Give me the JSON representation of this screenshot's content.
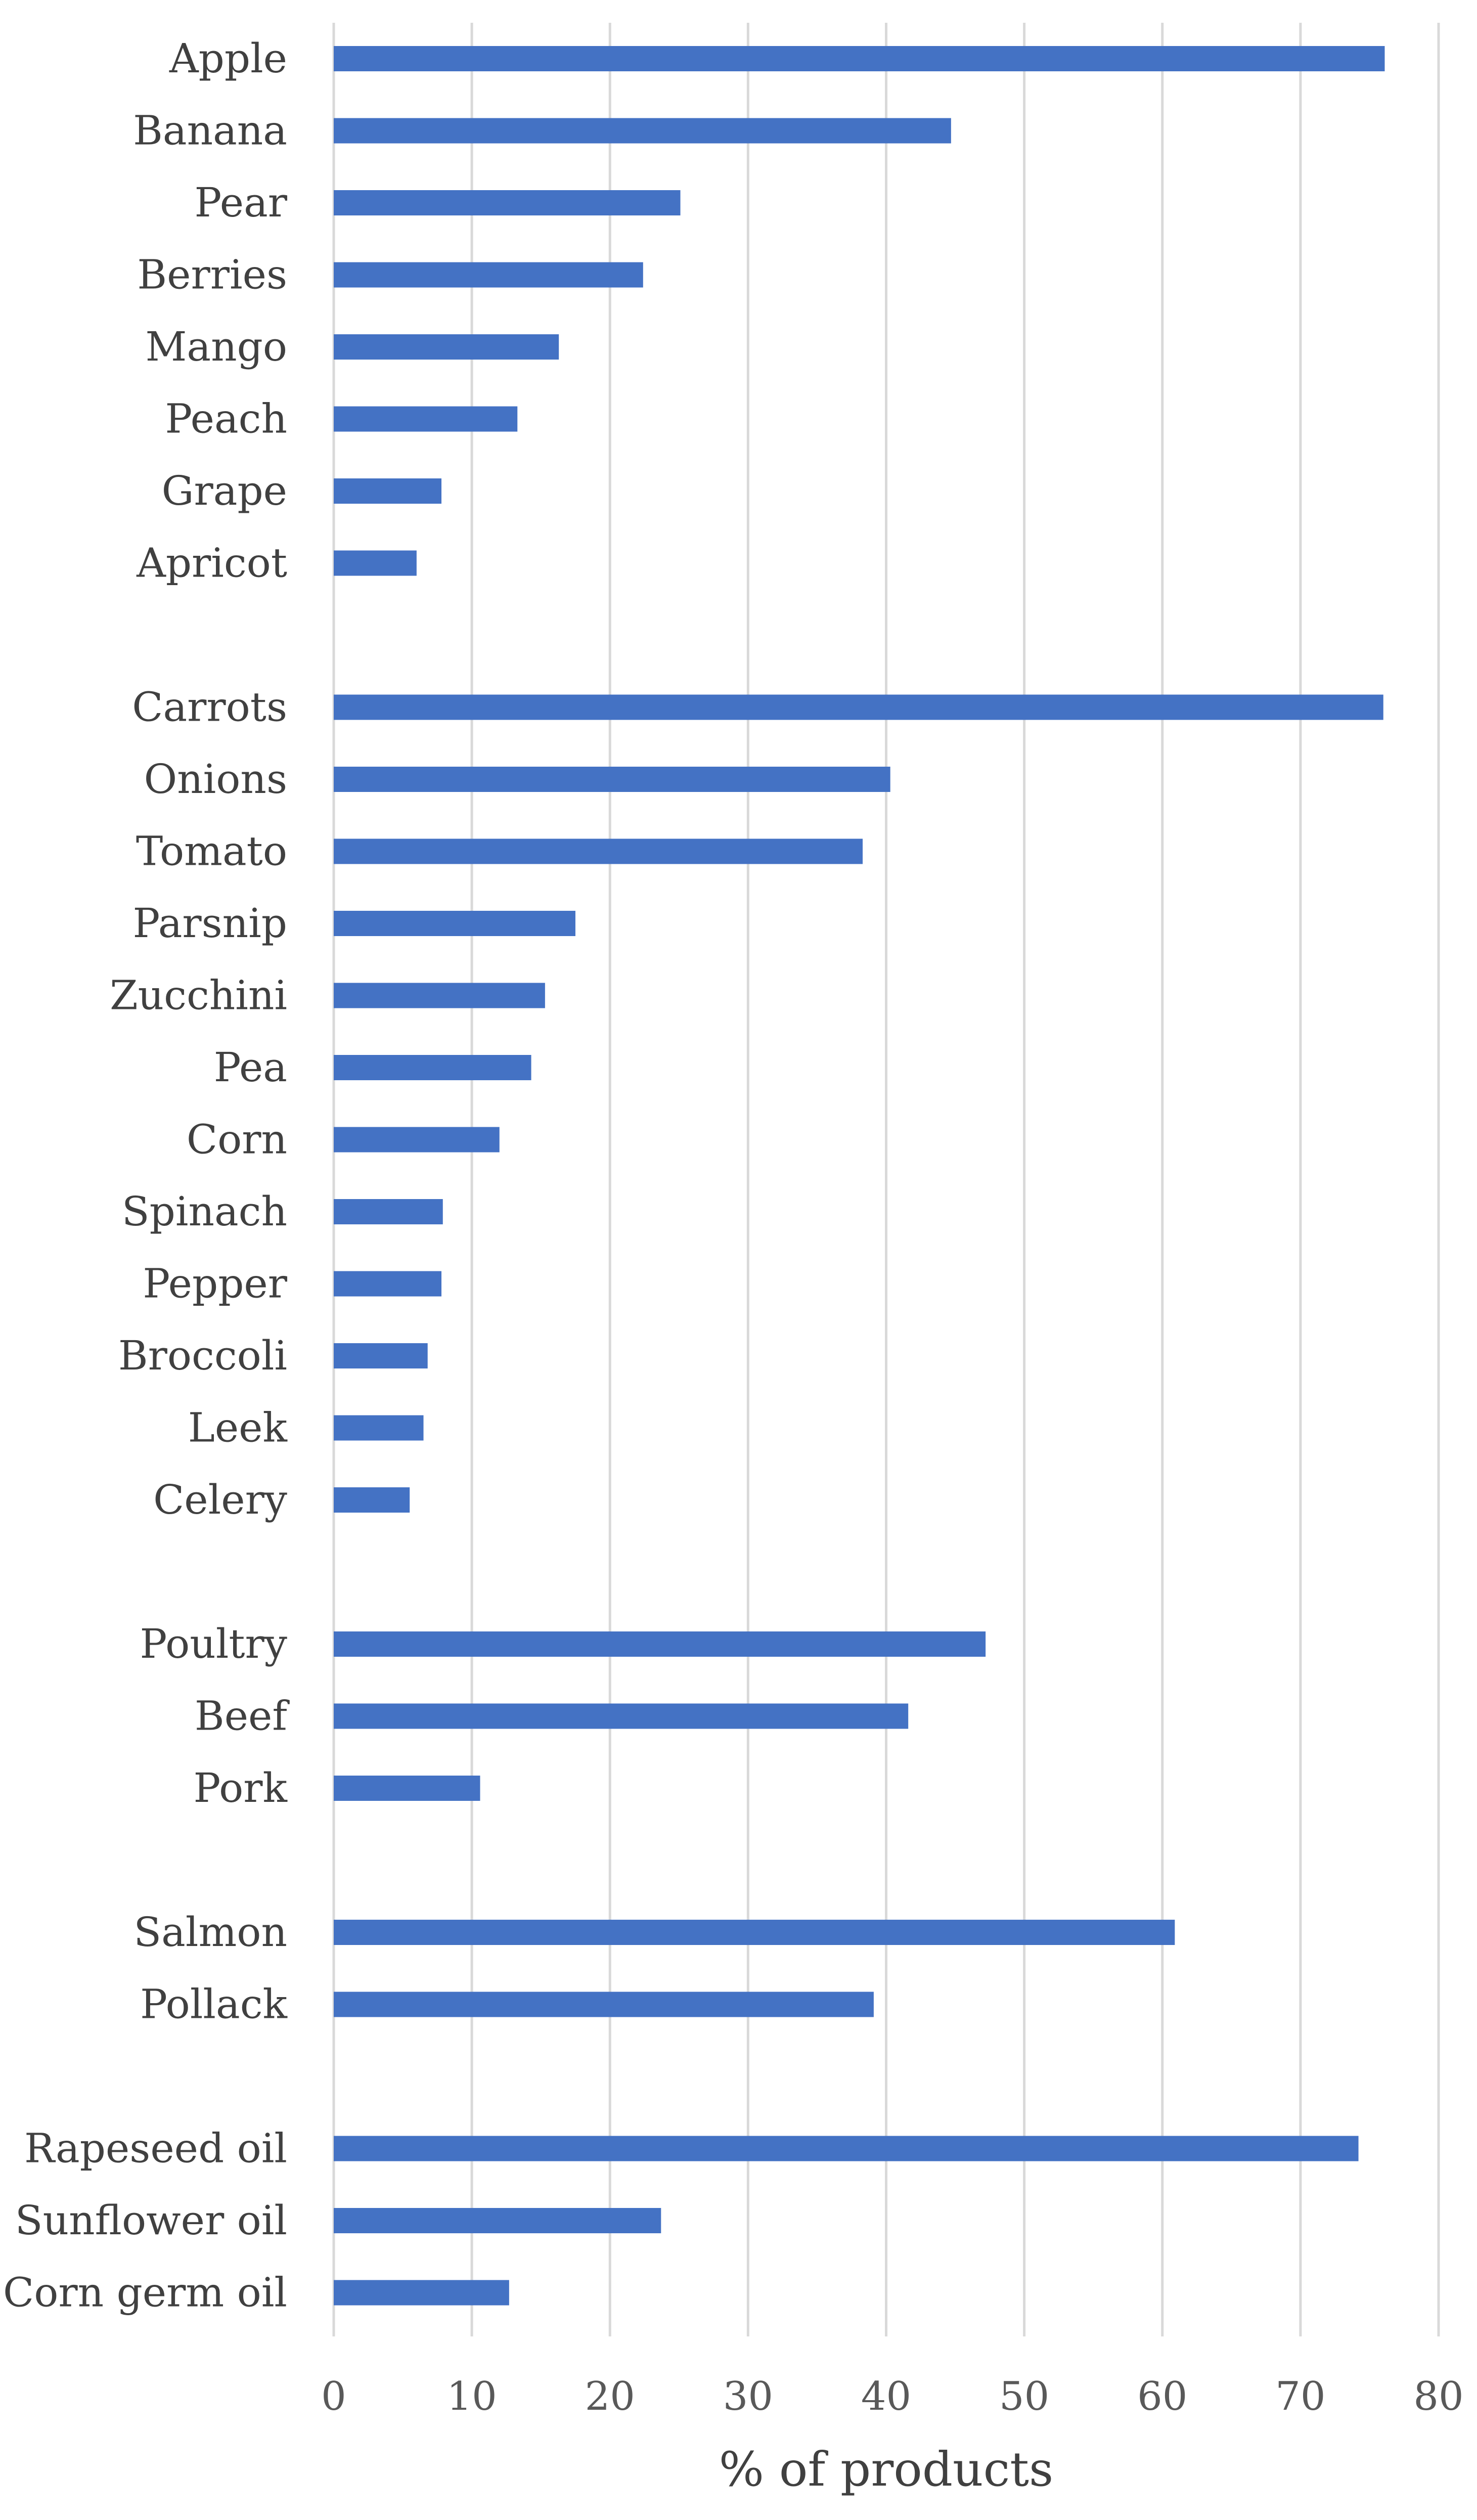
{
  "chart_data": {
    "type": "bar",
    "orientation": "horizontal",
    "title": "",
    "xlabel": "% of products",
    "ylabel": "",
    "xlim": [
      0,
      80
    ],
    "xticks": [
      0,
      10,
      20,
      30,
      40,
      50,
      60,
      70,
      80
    ],
    "grid": "vertical",
    "legend": "none",
    "bar_color": "#4472c4",
    "groups": [
      {
        "categories": [
          "Apple",
          "Banana",
          "Pear",
          "Berries",
          "Mango",
          "Peach",
          "Grape",
          "Apricot"
        ],
        "values": [
          76.1,
          44.7,
          25.1,
          22.4,
          16.3,
          13.3,
          7.8,
          6.0
        ]
      },
      {
        "categories": [
          "Carrots",
          "Onions",
          "Tomato",
          "Parsnip",
          "Zucchini",
          "Pea",
          "Corn",
          "Spinach",
          "Pepper",
          "Broccoli",
          "Leek",
          "Celery"
        ],
        "values": [
          76.0,
          40.3,
          38.3,
          17.5,
          15.3,
          14.3,
          12.0,
          7.9,
          7.8,
          6.8,
          6.5,
          5.5
        ]
      },
      {
        "categories": [
          "Poultry",
          "Beef",
          "Pork"
        ],
        "values": [
          47.2,
          41.6,
          10.6
        ]
      },
      {
        "categories": [
          "Salmon",
          "Pollack"
        ],
        "values": [
          60.9,
          39.1
        ]
      },
      {
        "categories": [
          "Rapeseed oil",
          "Sunflower oil",
          "Corn germ oil"
        ],
        "values": [
          74.2,
          23.7,
          12.7
        ]
      }
    ]
  }
}
